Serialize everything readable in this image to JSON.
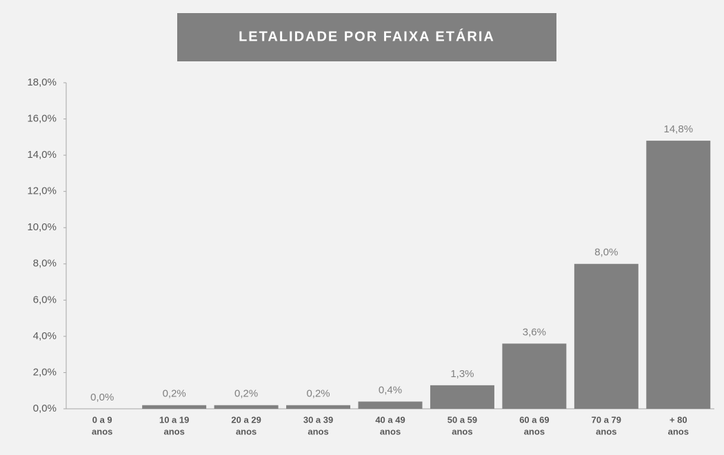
{
  "chart_data": {
    "type": "bar",
    "title": "LETALIDADE POR FAIXA ETÁRIA",
    "categories": [
      [
        "0 a 9",
        "anos"
      ],
      [
        "10 a 19",
        "anos"
      ],
      [
        "20 a 29",
        "anos"
      ],
      [
        "30 a 39",
        "anos"
      ],
      [
        "40 a 49",
        "anos"
      ],
      [
        "50 a 59",
        "anos"
      ],
      [
        "60 a 69",
        "anos"
      ],
      [
        "70 a 79",
        "anos"
      ],
      [
        "+ 80",
        "anos"
      ]
    ],
    "values": [
      0,
      0.2,
      0.2,
      0.2,
      0.4,
      1.3,
      3.6,
      8.0,
      14.8
    ],
    "value_labels": [
      "0,0%",
      "0,2%",
      "0,2%",
      "0,2%",
      "0,4%",
      "1,3%",
      "3,6%",
      "8,0%",
      "14,8%"
    ],
    "color": "#808080",
    "ylim": [
      0,
      18
    ],
    "yticks": [
      {
        "value": 0,
        "label": "0,0%"
      },
      {
        "value": 2,
        "label": "2,0%"
      },
      {
        "value": 4,
        "label": "4,0%"
      },
      {
        "value": 6,
        "label": "6,0%"
      },
      {
        "value": 8,
        "label": "8,0%"
      },
      {
        "value": 10,
        "label": "10,0%"
      },
      {
        "value": 12,
        "label": "12,0%"
      },
      {
        "value": 14,
        "label": "14,0%"
      },
      {
        "value": 16,
        "label": "16,0%"
      },
      {
        "value": 18,
        "label": "18,0%"
      }
    ],
    "grid": false
  }
}
